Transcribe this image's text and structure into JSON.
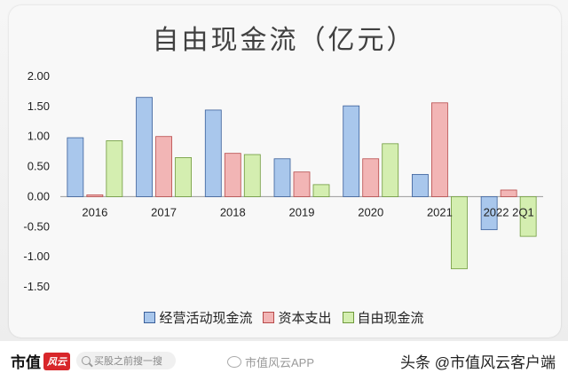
{
  "chart_data": {
    "type": "bar",
    "title": "自由现金流（亿元）",
    "categories": [
      "2016",
      "2017",
      "2018",
      "2019",
      "2020",
      "2021",
      "2022Q1"
    ],
    "tick_labels": [
      "2016",
      "2017",
      "2018",
      "2019",
      "2020",
      "2021",
      "2022 2Q1"
    ],
    "series": [
      {
        "name": "经营活动现金流",
        "color": "#a9c7ec",
        "stroke": "#3a5f9a",
        "values": [
          0.98,
          1.65,
          1.44,
          0.63,
          1.51,
          0.37,
          -0.55
        ]
      },
      {
        "name": "资本支出",
        "color": "#f2b5b5",
        "stroke": "#b84a4a",
        "values": [
          0.03,
          1.0,
          0.72,
          0.41,
          0.63,
          1.56,
          0.11
        ]
      },
      {
        "name": "自由现金流",
        "color": "#d4eeb0",
        "stroke": "#6f9a3c",
        "values": [
          0.93,
          0.65,
          0.7,
          0.2,
          0.88,
          -1.2,
          -0.66
        ]
      }
    ],
    "ylim": [
      -1.5,
      2.0
    ],
    "yticks": [
      "2.00",
      "1.50",
      "1.00",
      "0.50",
      "0.00",
      "-0.50",
      "-1.00",
      "-1.50"
    ],
    "ytick_values": [
      2.0,
      1.5,
      1.0,
      0.5,
      0.0,
      -0.5,
      -1.0,
      -1.5
    ],
    "xlabel": "",
    "ylabel": "",
    "grid": false,
    "legend": "bottom"
  },
  "footer": {
    "logo_text": "市值",
    "logo_mark": "风云",
    "search_text": "买股之前搜一搜",
    "watermark_text": "市值风云APP",
    "source_text": "头条 @市值风云客户端"
  }
}
